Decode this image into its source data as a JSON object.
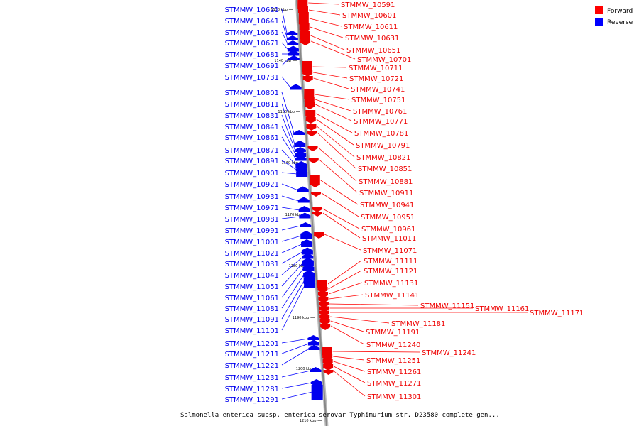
{
  "legend": [
    {
      "label": "Forward",
      "color": "#ff0000"
    },
    {
      "label": "Reverse",
      "color": "#0000ff"
    }
  ],
  "title": "Salmonella enterica subsp. enterica serovar Typhimurium str. D23580 complete gen...",
  "colors": {
    "forward": "#ee0000",
    "reverse": "#0000ee",
    "backbone": "#888888",
    "leader_forward": "#ff0000",
    "leader_reverse": "#0000ff"
  },
  "ticks": [
    "1130 kbp",
    "1140 kbp",
    "1150 kbp",
    "1160 kbp",
    "1170 kbp",
    "1180 kbp",
    "1190 kbp",
    "1200 kbp",
    "1210 kbp"
  ],
  "reverse_genes": [
    "STMMW_10621",
    "STMMW_10641",
    "STMMW_10661",
    "STMMW_10671",
    "STMMW_10681",
    "STMMW_10691",
    "STMMW_10731",
    "STMMW_10801",
    "STMMW_10811",
    "STMMW_10831",
    "STMMW_10841",
    "STMMW_10861",
    "STMMW_10871",
    "STMMW_10891",
    "STMMW_10901",
    "STMMW_10921",
    "STMMW_10931",
    "STMMW_10971",
    "STMMW_10981",
    "STMMW_10991",
    "STMMW_11001",
    "STMMW_11021",
    "STMMW_11031",
    "STMMW_11041",
    "STMMW_11051",
    "STMMW_11061",
    "STMMW_11081",
    "STMMW_11091",
    "STMMW_11101",
    "STMMW_11201",
    "STMMW_11211",
    "STMMW_11221",
    "STMMW_11231",
    "STMMW_11281",
    "STMMW_11291"
  ],
  "forward_genes": [
    "STMMW_10591",
    "STMMW_10601",
    "STMMW_10611",
    "STMMW_10631",
    "STMMW_10651",
    "STMMW_10701",
    "STMMW_10711",
    "STMMW_10721",
    "STMMW_10741",
    "STMMW_10751",
    "STMMW_10761",
    "STMMW_10771",
    "STMMW_10781",
    "STMMW_10791",
    "STMMW_10821",
    "STMMW_10851",
    "STMMW_10881",
    "STMMW_10911",
    "STMMW_10941",
    "STMMW_10951",
    "STMMW_10961",
    "STMMW_11011",
    "STMMW_11071",
    "STMMW_11111",
    "STMMW_11121",
    "STMMW_11131",
    "STMMW_11141",
    "STMMW_11151",
    "STMMW_11161",
    "STMMW_11171",
    "STMMW_11181",
    "STMMW_11191",
    "STMMW_11240",
    "STMMW_11241",
    "STMMW_11251",
    "STMMW_11261",
    "STMMW_11271",
    "STMMW_11301"
  ]
}
